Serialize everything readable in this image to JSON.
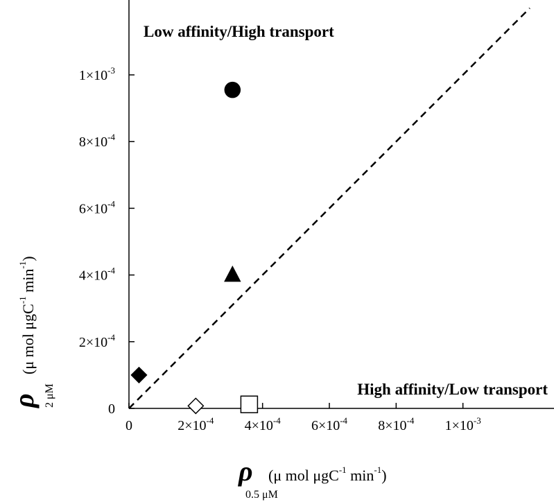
{
  "chart_data": {
    "type": "scatter",
    "x_range": [
      0,
      0.0012
    ],
    "y_range": [
      0,
      0.0012
    ],
    "x_ticks": [
      {
        "value": 0,
        "label": "0"
      },
      {
        "value": 0.0002,
        "label": "2×10",
        "exp": "-4"
      },
      {
        "value": 0.0004,
        "label": "4×10",
        "exp": "-4"
      },
      {
        "value": 0.0006,
        "label": "6×10",
        "exp": "-4"
      },
      {
        "value": 0.0008,
        "label": "8×10",
        "exp": "-4"
      },
      {
        "value": 0.001,
        "label": "1×10",
        "exp": "-3"
      }
    ],
    "y_ticks": [
      {
        "value": 0,
        "label": "0"
      },
      {
        "value": 0.0002,
        "label": "2×10",
        "exp": "-4"
      },
      {
        "value": 0.0004,
        "label": "4×10",
        "exp": "-4"
      },
      {
        "value": 0.0006,
        "label": "6×10",
        "exp": "-4"
      },
      {
        "value": 0.0008,
        "label": "8×10",
        "exp": "-4"
      },
      {
        "value": 0.001,
        "label": "1×10",
        "exp": "-3"
      }
    ],
    "xlabel": {
      "symbol": "ρ",
      "subscript": "0.5 μM",
      "unit_a": "(μ mol  μgC",
      "unit_exp1": "-1",
      "unit_b": " min",
      "unit_exp2": "-1",
      "unit_c": ")"
    },
    "ylabel": {
      "symbol": "ρ",
      "subscript": "2 μM",
      "unit_a": "(μ mol  μgC",
      "unit_exp1": "-1",
      "unit_b": "  min",
      "unit_exp2": "-1",
      "unit_c": ")"
    },
    "annotations": [
      {
        "text": "Low affinity/High transport",
        "position": "top-left"
      },
      {
        "text": "High affinity/Low transport",
        "position": "bottom-right"
      }
    ],
    "reference_line": {
      "style": "dashed",
      "from": [
        0,
        0
      ],
      "to": [
        0.0012,
        0.0012
      ]
    },
    "points": [
      {
        "x": 0.00031,
        "y": 0.000955,
        "marker": "circle",
        "fill": "#000000"
      },
      {
        "x": 0.00031,
        "y": 0.0004,
        "marker": "triangle",
        "fill": "#000000"
      },
      {
        "x": 3e-05,
        "y": 0.0001,
        "marker": "diamond",
        "fill": "#000000"
      },
      {
        "x": 0.0002,
        "y": 7.5e-06,
        "marker": "diamond",
        "fill": "#ffffff"
      },
      {
        "x": 0.00036,
        "y": 1.2e-05,
        "marker": "square",
        "fill": "#ffffff"
      }
    ],
    "grid": false
  }
}
